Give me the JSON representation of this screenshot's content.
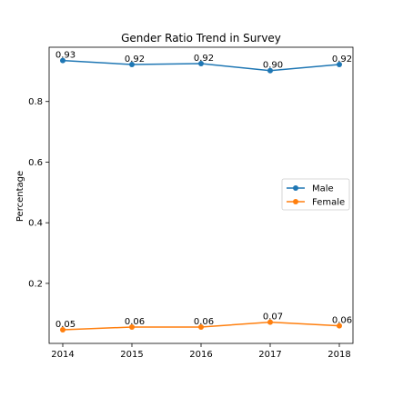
{
  "chart_data": {
    "type": "line",
    "title": "Gender Ratio Trend in Survey",
    "xlabel": "",
    "ylabel": "Percentage",
    "x": [
      "2014",
      "2015",
      "2016",
      "2017",
      "2018"
    ],
    "series": [
      {
        "name": "Male",
        "values": [
          0.935,
          0.922,
          0.925,
          0.902,
          0.922
        ],
        "labels": [
          "0.93",
          "0.92",
          "0.92",
          "0.90",
          "0.92"
        ],
        "color": "#1f77b4"
      },
      {
        "name": "Female",
        "values": [
          0.047,
          0.056,
          0.056,
          0.072,
          0.06
        ],
        "labels": [
          "0.05",
          "0.06",
          "0.06",
          "0.07",
          "0.06"
        ],
        "color": "#ff7f0e"
      }
    ],
    "yticks": [
      0.2,
      0.4,
      0.6,
      0.8
    ],
    "ytick_labels": [
      "0.2",
      "0.4",
      "0.6",
      "0.8"
    ],
    "ylim": [
      0.002,
      0.979
    ],
    "grid": false,
    "legend_position": "center-right"
  }
}
